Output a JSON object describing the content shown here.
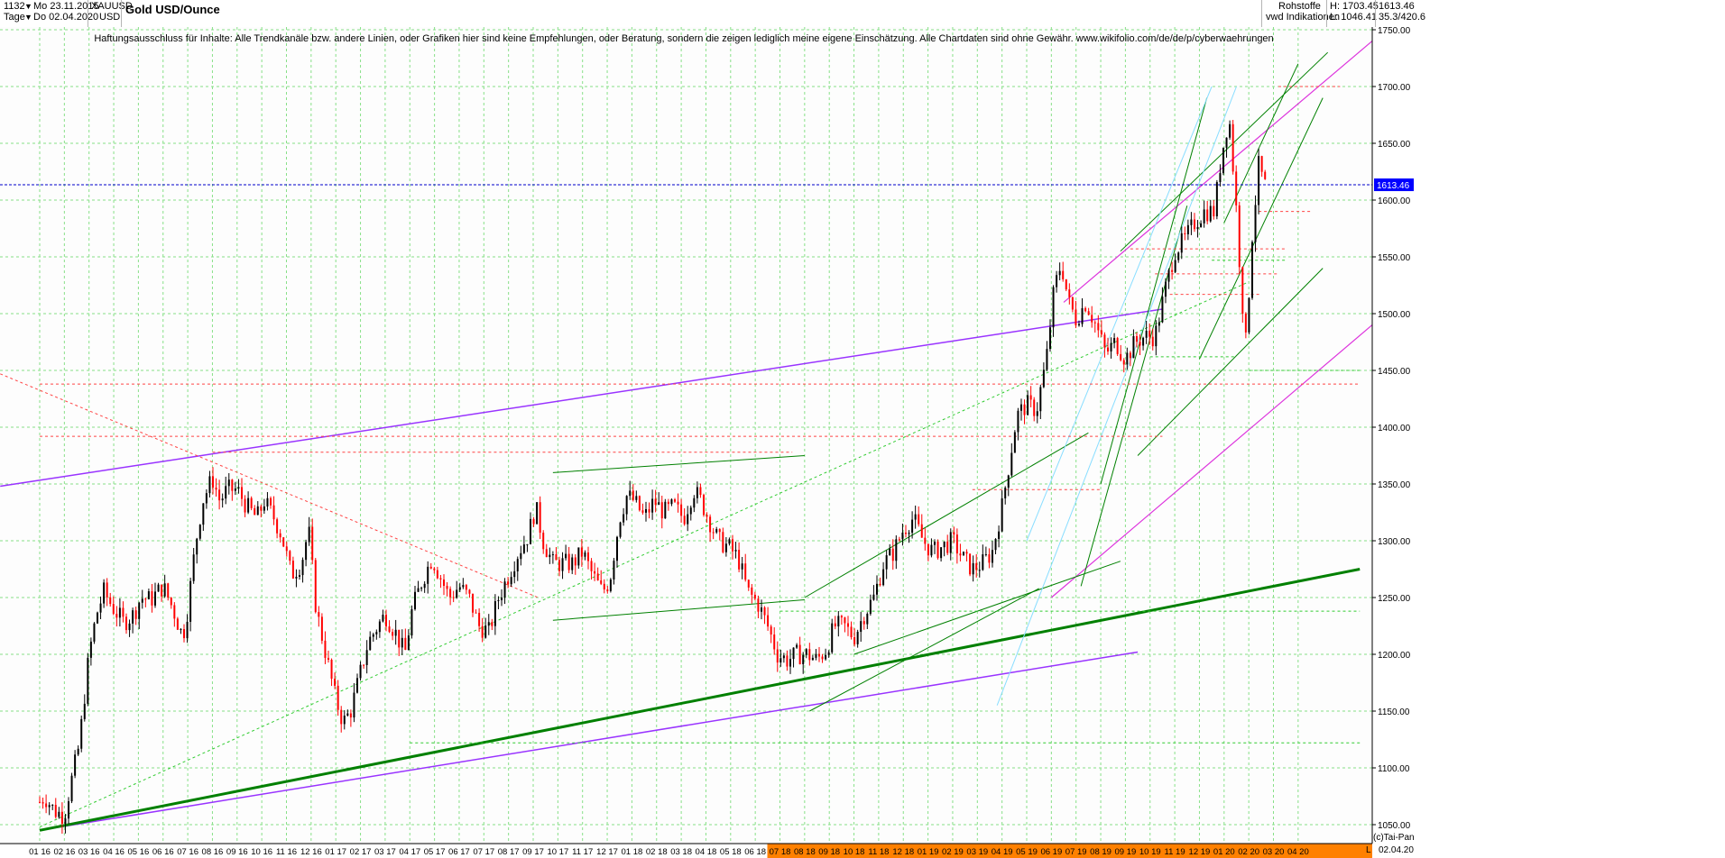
{
  "header": {
    "count": "1132",
    "start_date": "Mo 23.11.2015",
    "period": "Tage",
    "end_date": "Do 02.04.2020",
    "symbol": "XAUUSD",
    "currency": "USD",
    "title": "Gold USD/Ounce",
    "category": "Rohstoffe",
    "provider": "vwd Indikationen",
    "high": "H: 1703.45",
    "low": "L: 1046.41",
    "last": "1613.46",
    "info": "35.3/420.6",
    "disclaimer": "Haftungsausschluss für Inhalte: Alle Trendkanäle bzw. andere Linien, oder Grafiken hier sind keine Empfehlungen, oder Beratung, sondern die zeigen lediglich meine eigene Einschätzung. Alle Chartdaten sind ohne Gewähr.  www.wikifolio.com/de/de/p/cyberwaehrungen",
    "copyright": "(c)Tai-Pan",
    "footer_date": "02.04.20",
    "footer_letter": "L"
  },
  "colors": {
    "candle_up": "#000000",
    "candle_down": "#ff0000",
    "grid": "#88e088",
    "price_line": "#0000cc",
    "price_label_bg": "#0000ff",
    "axis_highlight": "#ff8000",
    "trend_green": "#008000",
    "trend_purple": "#9933ff",
    "trend_magenta": "#dd33dd",
    "trend_cyan": "#88ddff",
    "support_red": "#ff4444"
  },
  "chart_data": {
    "type": "candlestick",
    "title": "Gold USD/Ounce",
    "y_range": [
      1030,
      1760
    ],
    "y_ticks": [
      1050,
      1100,
      1150,
      1200,
      1250,
      1300,
      1350,
      1400,
      1450,
      1500,
      1550,
      1600,
      1650,
      1700,
      1750
    ],
    "y_tick_labels": [
      "1050.00",
      "1100.00",
      "1150.00",
      "1200.00",
      "1250.00",
      "1300.00",
      "1350.00",
      "1400.00",
      "1450.00",
      "1500.00",
      "1550.00",
      "1600.00",
      "1650.00",
      "1700.00",
      "1750.00"
    ],
    "x_ticks": [
      "01 16",
      "02 16",
      "03 16",
      "04 16",
      "05 16",
      "06 16",
      "07 16",
      "08 16",
      "09 16",
      "10 16",
      "11 16",
      "12 16",
      "01 17",
      "02 17",
      "03 17",
      "04 17",
      "05 17",
      "06 17",
      "07 17",
      "08 17",
      "09 17",
      "10 17",
      "11 17",
      "12 17",
      "01 18",
      "02 18",
      "03 18",
      "04 18",
      "05 18",
      "06 18",
      "07 18",
      "08 18",
      "09 18",
      "10 18",
      "11 18",
      "12 18",
      "01 19",
      "02 19",
      "03 19",
      "04 19",
      "05 19",
      "06 19",
      "07 19",
      "08 19",
      "09 19",
      "10 19",
      "11 19",
      "12 19",
      "01 20",
      "02 20",
      "03 20",
      "04 20"
    ],
    "x_highlight_from": "07 18",
    "current_price": 1613.46,
    "grid": true,
    "price_path": [
      [
        0,
        1070
      ],
      [
        0.2,
        1075
      ],
      [
        0.6,
        1062
      ],
      [
        1,
        1058
      ],
      [
        1.3,
        1090
      ],
      [
        1.6,
        1120
      ],
      [
        2,
        1200
      ],
      [
        2.3,
        1235
      ],
      [
        2.6,
        1255
      ],
      [
        3,
        1240
      ],
      [
        3.4,
        1228
      ],
      [
        3.8,
        1235
      ],
      [
        4.1,
        1250
      ],
      [
        4.5,
        1248
      ],
      [
        5,
        1260
      ],
      [
        5.4,
        1240
      ],
      [
        5.8,
        1215
      ],
      [
        6,
        1240
      ],
      [
        6.3,
        1295
      ],
      [
        6.6,
        1335
      ],
      [
        7,
        1355
      ],
      [
        7.3,
        1335
      ],
      [
        7.6,
        1345
      ],
      [
        8,
        1345
      ],
      [
        8.4,
        1330
      ],
      [
        8.8,
        1320
      ],
      [
        9.1,
        1335
      ],
      [
        9.5,
        1320
      ],
      [
        9.8,
        1305
      ],
      [
        10.2,
        1270
      ],
      [
        10.6,
        1280
      ],
      [
        10.9,
        1310
      ],
      [
        11.2,
        1240
      ],
      [
        11.6,
        1200
      ],
      [
        12,
        1160
      ],
      [
        12.3,
        1140
      ],
      [
        12.6,
        1150
      ],
      [
        12.9,
        1175
      ],
      [
        13.3,
        1210
      ],
      [
        13.7,
        1225
      ],
      [
        14,
        1235
      ],
      [
        14.4,
        1220
      ],
      [
        14.8,
        1200
      ],
      [
        15.1,
        1240
      ],
      [
        15.5,
        1265
      ],
      [
        15.9,
        1285
      ],
      [
        16.3,
        1265
      ],
      [
        16.6,
        1250
      ],
      [
        17,
        1260
      ],
      [
        17.4,
        1250
      ],
      [
        17.8,
        1225
      ],
      [
        18.2,
        1220
      ],
      [
        18.6,
        1250
      ],
      [
        19,
        1270
      ],
      [
        19.4,
        1290
      ],
      [
        19.8,
        1305
      ],
      [
        20.1,
        1330
      ],
      [
        20.4,
        1300
      ],
      [
        20.8,
        1280
      ],
      [
        21.2,
        1280
      ],
      [
        21.6,
        1280
      ],
      [
        22,
        1290
      ],
      [
        22.4,
        1270
      ],
      [
        22.8,
        1255
      ],
      [
        23.1,
        1265
      ],
      [
        23.5,
        1320
      ],
      [
        23.8,
        1340
      ],
      [
        24.1,
        1335
      ],
      [
        24.5,
        1320
      ],
      [
        24.9,
        1335
      ],
      [
        25.3,
        1325
      ],
      [
        25.7,
        1330
      ],
      [
        26.1,
        1320
      ],
      [
        26.5,
        1345
      ],
      [
        26.8,
        1335
      ],
      [
        27.1,
        1320
      ],
      [
        27.5,
        1300
      ],
      [
        27.9,
        1295
      ],
      [
        28.3,
        1285
      ],
      [
        28.7,
        1255
      ],
      [
        29.1,
        1245
      ],
      [
        29.5,
        1225
      ],
      [
        29.9,
        1200
      ],
      [
        30.3,
        1195
      ],
      [
        30.7,
        1200
      ],
      [
        31.1,
        1200
      ],
      [
        31.5,
        1195
      ],
      [
        31.9,
        1205
      ],
      [
        32.2,
        1225
      ],
      [
        32.6,
        1225
      ],
      [
        33,
        1215
      ],
      [
        33.4,
        1235
      ],
      [
        33.8,
        1250
      ],
      [
        34.2,
        1280
      ],
      [
        34.6,
        1290
      ],
      [
        35,
        1310
      ],
      [
        35.4,
        1320
      ],
      [
        35.8,
        1300
      ],
      [
        36.2,
        1290
      ],
      [
        36.6,
        1295
      ],
      [
        37,
        1300
      ],
      [
        37.4,
        1285
      ],
      [
        37.8,
        1275
      ],
      [
        38.2,
        1280
      ],
      [
        38.6,
        1290
      ],
      [
        39,
        1330
      ],
      [
        39.3,
        1370
      ],
      [
        39.6,
        1410
      ],
      [
        40,
        1420
      ],
      [
        40.4,
        1415
      ],
      [
        40.8,
        1460
      ],
      [
        41.1,
        1520
      ],
      [
        41.4,
        1545
      ],
      [
        41.7,
        1510
      ],
      [
        42,
        1495
      ],
      [
        42.4,
        1510
      ],
      [
        42.8,
        1490
      ],
      [
        43.2,
        1465
      ],
      [
        43.6,
        1475
      ],
      [
        44,
        1460
      ],
      [
        44.4,
        1475
      ],
      [
        44.8,
        1480
      ],
      [
        45.2,
        1480
      ],
      [
        45.6,
        1520
      ],
      [
        46,
        1555
      ],
      [
        46.4,
        1565
      ],
      [
        46.8,
        1580
      ],
      [
        47.2,
        1590
      ],
      [
        47.6,
        1590
      ],
      [
        47.9,
        1640
      ],
      [
        48.2,
        1675
      ],
      [
        48.5,
        1590
      ],
      [
        48.7,
        1520
      ],
      [
        48.9,
        1470
      ],
      [
        49.1,
        1560
      ],
      [
        49.4,
        1630
      ],
      [
        49.7,
        1610
      ]
    ]
  }
}
